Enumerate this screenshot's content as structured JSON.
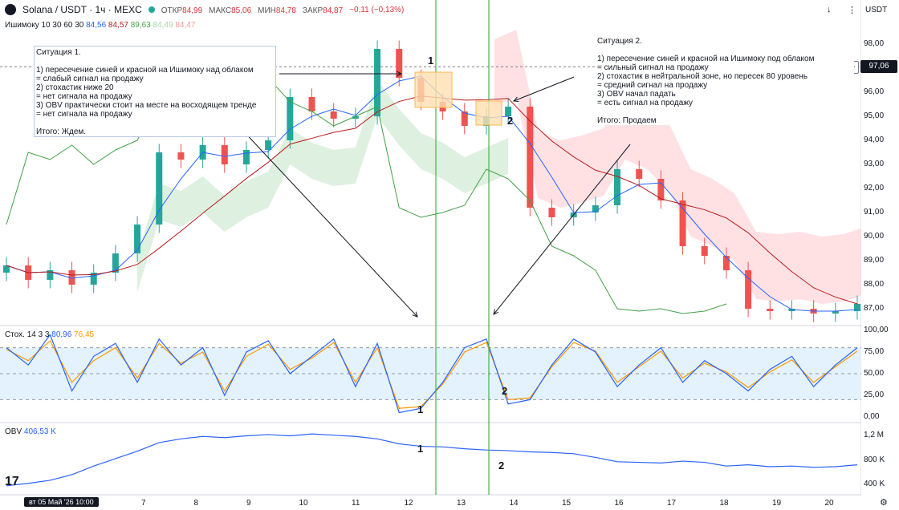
{
  "header": {
    "symbol": "Solana / USDT · 1ч · MEXC",
    "open_label": "ОТКР",
    "open": "84,99",
    "high_label": "МАКС",
    "high": "85,06",
    "low_label": "МИН",
    "low": "84,78",
    "close_label": "ЗАКР",
    "close": "84,87",
    "change": "−0,11 (−0,13%)",
    "currency": "USDT"
  },
  "ichimoku": {
    "label": "Ишимоку 10 30 60 30",
    "v1": "84,56",
    "v2": "84,57",
    "v3": "89,63",
    "v4": "84,49",
    "v5": "84,47",
    "c1": "#2962ff",
    "c2": "#b71c1c",
    "c3": "#43a047",
    "c4": "#a5d6a7",
    "c5": "#ef9a9a"
  },
  "price_axis": [
    "98,00",
    "97,00",
    "96,00",
    "95,00",
    "94,00",
    "93,00",
    "92,00",
    "91,00",
    "90,00",
    "89,00",
    "88,00",
    "87,00"
  ],
  "price_tag": "97,06",
  "stoch": {
    "label": "Стох. 14 3 3",
    "k": "80,96",
    "d": "76,45",
    "axis": [
      "100,00",
      "75,00",
      "50,00",
      "25,00",
      "0,00"
    ]
  },
  "obv": {
    "label": "OBV",
    "value": "406,53 K",
    "axis": [
      "1,2 M",
      "800 K",
      "400 K"
    ]
  },
  "x_axis": [
    "7",
    "8",
    "9",
    "10",
    "11",
    "12",
    "13",
    "14",
    "15",
    "16",
    "17",
    "18",
    "19",
    "20"
  ],
  "date_badge": "вт 05 Май '26   10:00",
  "note1": {
    "text": "Ситуация 1.\n\n1) пересечение синей и красной на Ишимоку над облаком\n= слабый сигнал на продажу\n2) стохастик ниже 20\n= нет сигнала на продажу\n3) OBV практически стоит на месте на восходящем тренде\n= нет сигнала на продажу\n\nИтого: Ждем."
  },
  "note2": {
    "text": "Ситуация 2.\n\n1) пересечение синей и красной на Ишимоку под облаком\n= сильный сигнал на продажу\n2) стохастик в нейтральной зоне, но пересек 80 уровень\n= средний сигнал на продажу\n3) OBV начал падать\n= есть сигнал на продажу\n\nИтого: Продаем"
  },
  "markers": {
    "m1": "1",
    "m2": "2"
  },
  "colors": {
    "up": "#26a69a",
    "down": "#ef5350",
    "tenkan": "#2962ff",
    "kijun": "#b71c1c",
    "chikou": "#43a047",
    "stoch_k": "#2962ff",
    "stoch_d": "#ff9800",
    "obv": "#2962ff",
    "vline": "#4caf50"
  },
  "chart_data": [
    {
      "type": "candlestick",
      "title": "Solana / USDT · 1ч · MEXC",
      "ylim": [
        86.5,
        98.5
      ],
      "x_ticks": [
        "7",
        "8",
        "9",
        "10",
        "11",
        "12",
        "13",
        "14",
        "15",
        "16",
        "17",
        "18",
        "19",
        "20"
      ],
      "close_path": [
        88.8,
        88.2,
        88.6,
        88.0,
        88.5,
        89.3,
        90.5,
        93.5,
        93.2,
        93.8,
        93.0,
        93.6,
        94.0,
        95.8,
        95.2,
        94.9,
        95.0,
        97.8,
        96.6,
        95.6,
        95.2,
        94.6,
        95.0,
        95.4,
        91.2,
        90.8,
        91.0,
        91.3,
        92.8,
        92.4,
        91.5,
        89.6,
        89.2,
        88.6,
        87.0,
        86.9,
        87.0,
        86.8,
        86.9,
        87.2
      ]
    },
    {
      "type": "line",
      "title": "Стох. 14 3 3",
      "ylim": [
        0,
        100
      ],
      "series": [
        {
          "name": "K",
          "values": [
            80,
            60,
            95,
            30,
            70,
            85,
            40,
            90,
            60,
            80,
            25,
            75,
            88,
            50,
            70,
            90,
            35,
            85,
            5,
            10,
            40,
            80,
            90,
            15,
            20,
            60,
            90,
            75,
            35,
            60,
            80,
            40,
            65,
            50,
            30,
            55,
            70,
            35,
            60,
            80
          ]
        },
        {
          "name": "D",
          "values": [
            78,
            65,
            88,
            40,
            65,
            80,
            45,
            85,
            62,
            75,
            30,
            70,
            84,
            55,
            68,
            86,
            40,
            80,
            10,
            12,
            38,
            75,
            86,
            20,
            22,
            58,
            86,
            76,
            40,
            58,
            76,
            45,
            62,
            52,
            34,
            52,
            66,
            40,
            58,
            76
          ]
        }
      ]
    },
    {
      "type": "line",
      "title": "OBV",
      "ylim": [
        300,
        1300
      ],
      "series": [
        {
          "name": "OBV",
          "values": [
            380,
            420,
            470,
            560,
            700,
            820,
            940,
            1080,
            1140,
            1180,
            1160,
            1190,
            1210,
            1190,
            1220,
            1200,
            1180,
            1140,
            1060,
            1020,
            1010,
            980,
            960,
            950,
            930,
            920,
            900,
            840,
            770,
            760,
            750,
            780,
            760,
            700,
            720,
            690,
            700,
            680,
            690,
            720
          ]
        }
      ]
    }
  ]
}
